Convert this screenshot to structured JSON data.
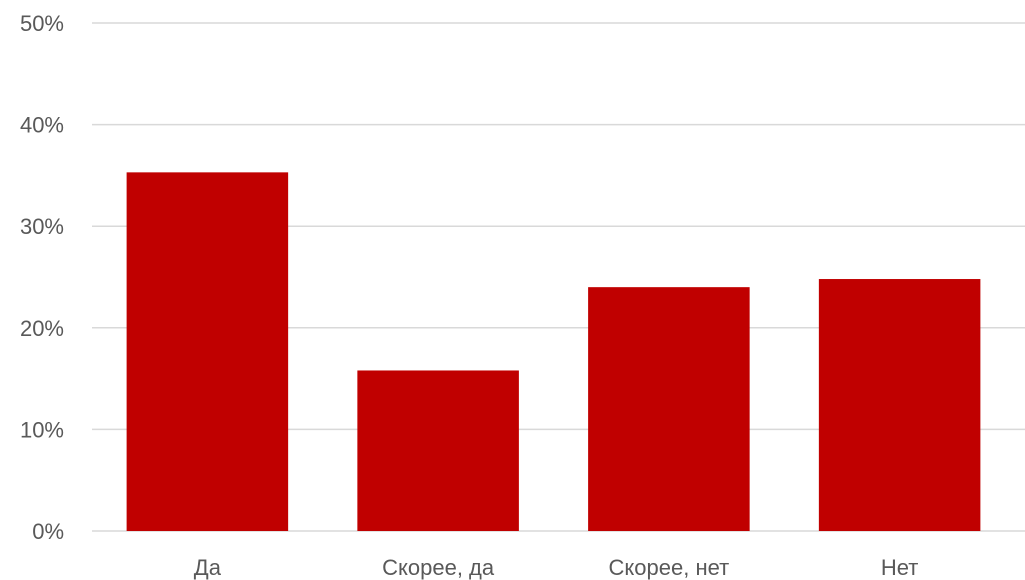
{
  "chart_data": {
    "type": "bar",
    "categories": [
      "Да",
      "Скорее, да",
      "Скорее, нет",
      "Нет"
    ],
    "values": [
      35.3,
      15.8,
      24.0,
      24.8
    ],
    "value_unit": "%",
    "title": "",
    "xlabel": "",
    "ylabel": "",
    "ylim": [
      0,
      50
    ],
    "yticks": [
      0,
      10,
      20,
      30,
      40,
      50
    ],
    "ytick_labels": [
      "0%",
      "10%",
      "20%",
      "30%",
      "40%",
      "50%"
    ],
    "grid": true,
    "legend": "none",
    "bar_color": "#c00000"
  }
}
